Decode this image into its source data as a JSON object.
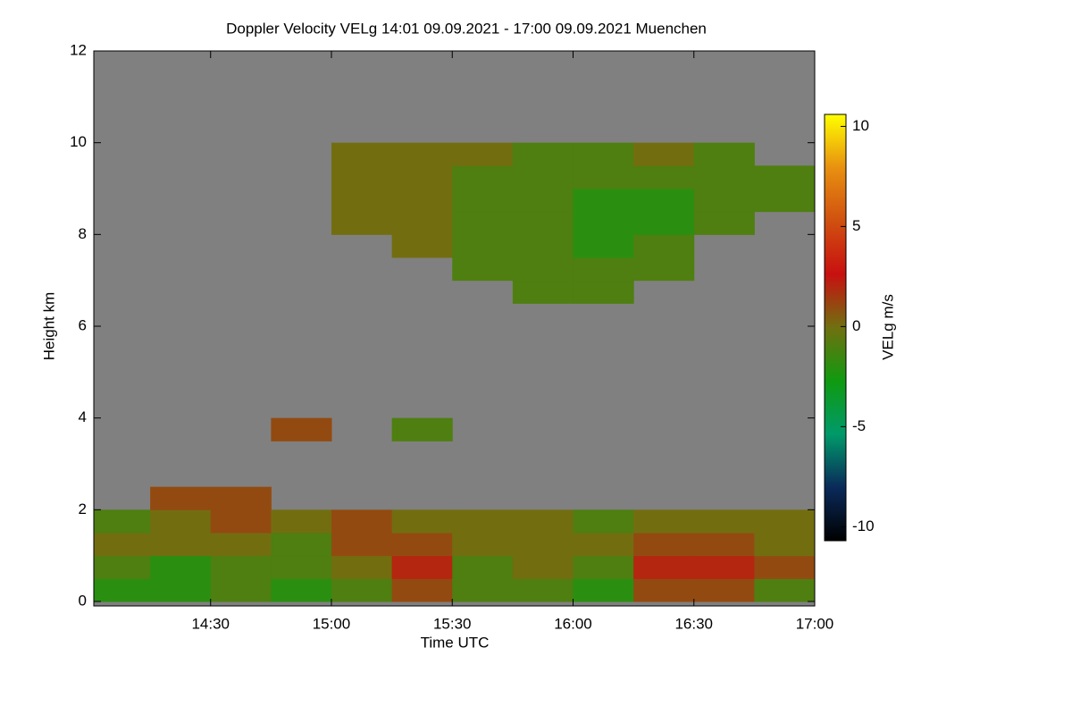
{
  "chart_data": {
    "type": "heatmap",
    "title": "Doppler Velocity VELg   14:01 09.09.2021 - 17:00 09.09.2021 Muenchen",
    "xlabel": "Time UTC",
    "ylabel": "Height km",
    "colorbar_label": "VELg m/s",
    "xlim": [
      "14:01",
      "17:00"
    ],
    "xticks": [
      "14:30",
      "15:00",
      "15:30",
      "16:00",
      "16:30",
      "17:00"
    ],
    "ylim": [
      0,
      12
    ],
    "yticks": [
      0,
      2,
      4,
      6,
      8,
      10,
      12
    ],
    "zlim": [
      -10.7,
      10.6
    ],
    "zticks": [
      -10,
      -5,
      0,
      5,
      10
    ],
    "colormap": [
      "#000000",
      "#0a2a5a",
      "#009a6a",
      "#109a10",
      "#707010",
      "#c81010",
      "#d05010",
      "#e89010",
      "#ffff00"
    ],
    "missing_color": "#808080",
    "x_edges": [
      "14:00",
      "14:15",
      "14:30",
      "14:45",
      "15:00",
      "15:15",
      "15:30",
      "15:45",
      "16:00",
      "16:15",
      "16:30",
      "16:45",
      "17:00"
    ],
    "y_edges": [
      0,
      0.5,
      1,
      1.5,
      2,
      2.5,
      3,
      3.5,
      4,
      4.5,
      5,
      5.5,
      6,
      6.5,
      7,
      7.5,
      8,
      8.5,
      9,
      9.5,
      10
    ],
    "z": [
      [
        -2,
        -2,
        -1,
        -2,
        -1,
        1,
        -1,
        -1,
        -2,
        1,
        1,
        -1
      ],
      [
        -1,
        -2,
        -1,
        -1,
        0,
        2,
        -1,
        0,
        -1,
        2,
        2,
        1
      ],
      [
        0,
        0,
        0,
        -1,
        1,
        1,
        0,
        0,
        0,
        1,
        1,
        0
      ],
      [
        -1,
        0,
        1,
        0,
        1,
        0,
        0,
        0,
        -1,
        0,
        0,
        0
      ],
      [
        null,
        1,
        1,
        null,
        null,
        null,
        null,
        null,
        null,
        null,
        null,
        null
      ],
      [
        null,
        null,
        null,
        null,
        null,
        null,
        null,
        null,
        null,
        null,
        null,
        null
      ],
      [
        null,
        null,
        null,
        null,
        null,
        null,
        null,
        null,
        null,
        null,
        null,
        null
      ],
      [
        null,
        null,
        null,
        1,
        null,
        -1,
        null,
        null,
        null,
        null,
        null,
        null
      ],
      [
        null,
        null,
        null,
        null,
        null,
        null,
        null,
        null,
        null,
        null,
        null,
        null
      ],
      [
        null,
        null,
        null,
        null,
        null,
        null,
        null,
        null,
        null,
        null,
        null,
        null
      ],
      [
        null,
        null,
        null,
        null,
        null,
        null,
        null,
        null,
        null,
        null,
        null,
        null
      ],
      [
        null,
        null,
        null,
        null,
        null,
        null,
        null,
        null,
        null,
        null,
        null,
        null
      ],
      [
        null,
        null,
        null,
        null,
        null,
        null,
        null,
        null,
        null,
        null,
        null,
        null
      ],
      [
        null,
        null,
        null,
        null,
        null,
        null,
        null,
        -1,
        -1,
        null,
        null,
        null
      ],
      [
        null,
        null,
        null,
        null,
        null,
        null,
        -1,
        -1,
        -1,
        -1,
        null,
        null
      ],
      [
        null,
        null,
        null,
        null,
        null,
        0,
        -1,
        -1,
        -2,
        -1,
        null,
        null
      ],
      [
        null,
        null,
        null,
        null,
        0,
        0,
        -1,
        -1,
        -2,
        -2,
        -1,
        null
      ],
      [
        null,
        null,
        null,
        null,
        0,
        0,
        -1,
        -1,
        -2,
        -2,
        -1,
        -1
      ],
      [
        null,
        null,
        null,
        null,
        0,
        0,
        -1,
        -1,
        -1,
        -1,
        -1,
        -1
      ],
      [
        null,
        null,
        null,
        null,
        0,
        0,
        0,
        -1,
        -1,
        0,
        -1,
        null
      ]
    ]
  }
}
